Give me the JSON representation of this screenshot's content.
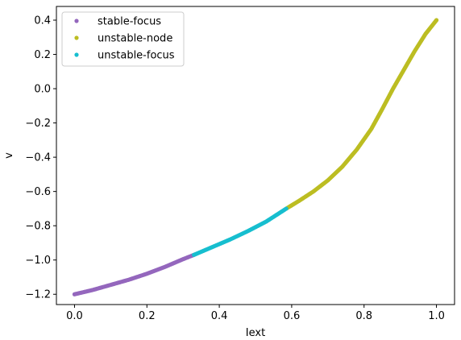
{
  "chart_data": {
    "type": "scatter",
    "xlabel": "Iext",
    "ylabel": "v",
    "xlim": [
      -0.05,
      1.05
    ],
    "ylim": [
      -1.26,
      0.48
    ],
    "xticks": [
      0.0,
      0.2,
      0.4,
      0.6,
      0.8,
      1.0
    ],
    "xtick_labels": [
      "0.0",
      "0.2",
      "0.4",
      "0.6",
      "0.8",
      "1.0"
    ],
    "yticks": [
      -1.2,
      -1.0,
      -0.8,
      -0.6,
      -0.4,
      -0.2,
      0.0,
      0.2,
      0.4
    ],
    "ytick_labels": [
      "−1.2",
      "−1.0",
      "−0.8",
      "−0.6",
      "−0.4",
      "−0.2",
      "0.0",
      "0.2",
      "0.4"
    ],
    "grid": false,
    "legend_position": "top-left",
    "series": [
      {
        "name": "stable-focus",
        "color": "#9467bd",
        "x": [
          0.0,
          0.05,
          0.1,
          0.15,
          0.2,
          0.25,
          0.3,
          0.33
        ],
        "y": [
          -1.2,
          -1.175,
          -1.145,
          -1.115,
          -1.08,
          -1.04,
          -0.995,
          -0.97
        ]
      },
      {
        "name": "unstable-node",
        "color": "#bcbd22",
        "x": [
          0.585,
          0.62,
          0.66,
          0.7,
          0.74,
          0.78,
          0.82,
          0.85,
          0.88,
          0.91,
          0.94,
          0.97,
          1.0
        ],
        "y": [
          -0.7,
          -0.655,
          -0.6,
          -0.535,
          -0.455,
          -0.355,
          -0.235,
          -0.12,
          0.0,
          0.11,
          0.22,
          0.32,
          0.4
        ]
      },
      {
        "name": "unstable-focus",
        "color": "#17becf",
        "x": [
          0.33,
          0.38,
          0.43,
          0.48,
          0.53,
          0.585
        ],
        "y": [
          -0.97,
          -0.925,
          -0.88,
          -0.83,
          -0.775,
          -0.7
        ]
      }
    ]
  }
}
